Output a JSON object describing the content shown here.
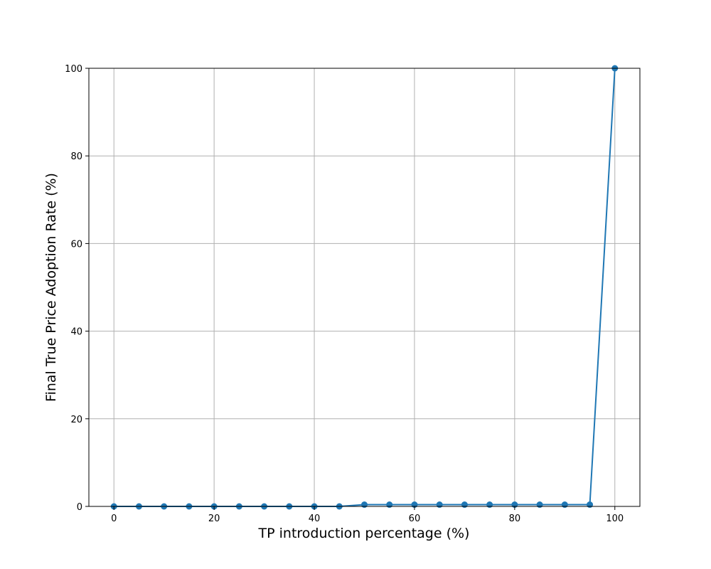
{
  "chart_data": {
    "type": "line",
    "title": "",
    "xlabel": "TP introduction percentage (%)",
    "ylabel": "Final True Price Adoption Rate (%)",
    "xlim": [
      -5,
      105
    ],
    "ylim": [
      0,
      100
    ],
    "x_ticks": [
      0,
      20,
      40,
      60,
      80,
      100
    ],
    "y_ticks": [
      0,
      20,
      40,
      60,
      80,
      100
    ],
    "grid": true,
    "series": [
      {
        "color": "#1f77b4",
        "marker": "circle",
        "x": [
          0,
          5,
          10,
          15,
          20,
          25,
          30,
          35,
          40,
          45,
          50,
          55,
          60,
          65,
          70,
          75,
          80,
          85,
          90,
          95,
          100
        ],
        "y": [
          0,
          0,
          0,
          0,
          0,
          0,
          0,
          0,
          0,
          0,
          0.4,
          0.4,
          0.4,
          0.4,
          0.4,
          0.4,
          0.4,
          0.4,
          0.4,
          0.4,
          100
        ]
      }
    ]
  }
}
